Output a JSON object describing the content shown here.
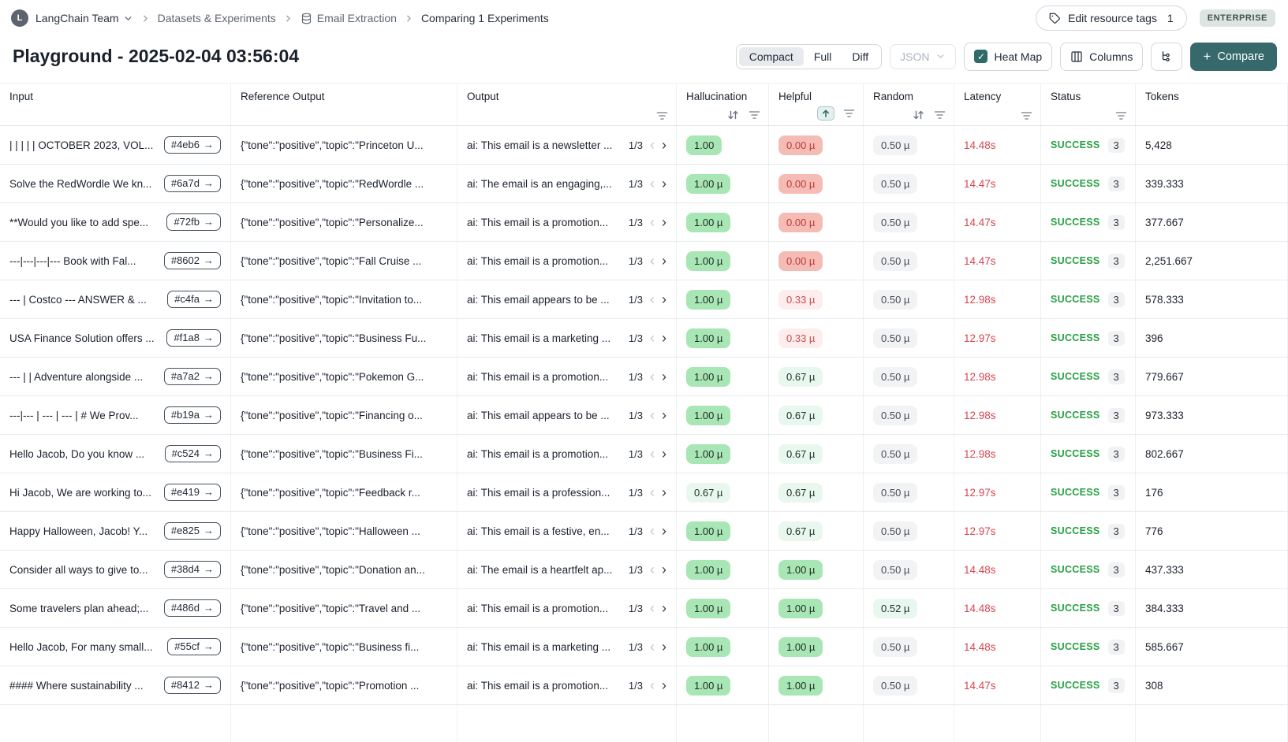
{
  "breadcrumb": {
    "team": "LangChain Team",
    "items": [
      "Datasets & Experiments",
      "Email Extraction",
      "Comparing 1 Experiments"
    ]
  },
  "topbar": {
    "edit_tags_label": "Edit resource tags",
    "edit_tags_count": "1",
    "enterprise_badge": "ENTERPRISE"
  },
  "header": {
    "title": "Playground - 2025-02-04 03:56:04",
    "view_modes": [
      "Compact",
      "Full",
      "Diff"
    ],
    "active_mode": "Compact",
    "json_dropdown": "JSON",
    "heatmap_label": "Heat Map",
    "heatmap_checked": true,
    "columns_label": "Columns",
    "compare_label": "Compare"
  },
  "colors": {
    "accent_teal": "#35696b",
    "badge_green": "#a9e6b5",
    "badge_green_light": "#e9f8ee",
    "badge_red": "#f5bcb6",
    "badge_red_light": "#fdedec",
    "badge_gray": "#f2f3f5",
    "latency_red": "#d64550",
    "success_green": "#27a043"
  },
  "table": {
    "columns": [
      {
        "label": "Input",
        "icons": []
      },
      {
        "label": "Reference Output",
        "icons": []
      },
      {
        "label": "Output",
        "icons": [
          "filter"
        ]
      },
      {
        "label": "Hallucination",
        "icons": [
          "sort",
          "filter"
        ]
      },
      {
        "label": "Helpful",
        "icons": [
          "sort-asc-active",
          "filter"
        ]
      },
      {
        "label": "Random",
        "icons": [
          "sort",
          "filter"
        ]
      },
      {
        "label": "Latency",
        "icons": [
          "filter"
        ]
      },
      {
        "label": "Status",
        "icons": [
          "filter"
        ]
      },
      {
        "label": "Tokens",
        "icons": []
      }
    ],
    "rows": [
      {
        "input": "| | | | | OCTOBER 2023, VOL...",
        "hash": "#4eb6",
        "reference": "{\"tone\":\"positive\",\"topic\":\"Princeton U...",
        "output": "ai: This email is a newsletter ...",
        "pager": "1/3",
        "hallucination": {
          "value": "1.00",
          "tone": "green"
        },
        "helpful": {
          "value": "0.00 µ",
          "tone": "red"
        },
        "random": {
          "value": "0.50 µ",
          "tone": "gray"
        },
        "latency": "14.48s",
        "status": "SUCCESS",
        "attempts": "3",
        "tokens": "5,428"
      },
      {
        "input": "Solve the RedWordle We kn...",
        "hash": "#6a7d",
        "reference": "{\"tone\":\"positive\",\"topic\":\"RedWordle ...",
        "output": "ai: The email is an engaging,...",
        "pager": "1/3",
        "hallucination": {
          "value": "1.00 µ",
          "tone": "green"
        },
        "helpful": {
          "value": "0.00 µ",
          "tone": "red"
        },
        "random": {
          "value": "0.50 µ",
          "tone": "gray"
        },
        "latency": "14.47s",
        "status": "SUCCESS",
        "attempts": "3",
        "tokens": "339.333"
      },
      {
        "input": "**Would you like to add spe...",
        "hash": "#72fb",
        "reference": "{\"tone\":\"positive\",\"topic\":\"Personalize...",
        "output": "ai: This email is a promotion...",
        "pager": "1/3",
        "hallucination": {
          "value": "1.00 µ",
          "tone": "green"
        },
        "helpful": {
          "value": "0.00 µ",
          "tone": "red"
        },
        "random": {
          "value": "0.50 µ",
          "tone": "gray"
        },
        "latency": "14.47s",
        "status": "SUCCESS",
        "attempts": "3",
        "tokens": "377.667"
      },
      {
        "input": "---|---|---|--- Book with Fal...",
        "hash": "#8602",
        "reference": "{\"tone\":\"positive\",\"topic\":\"Fall Cruise ...",
        "output": "ai: This email is a promotion...",
        "pager": "1/3",
        "hallucination": {
          "value": "1.00 µ",
          "tone": "green"
        },
        "helpful": {
          "value": "0.00 µ",
          "tone": "red"
        },
        "random": {
          "value": "0.50 µ",
          "tone": "gray"
        },
        "latency": "14.47s",
        "status": "SUCCESS",
        "attempts": "3",
        "tokens": "2,251.667"
      },
      {
        "input": "--- | Costco --- ANSWER & ...",
        "hash": "#c4fa",
        "reference": "{\"tone\":\"positive\",\"topic\":\"Invitation to...",
        "output": "ai: This email appears to be ...",
        "pager": "1/3",
        "hallucination": {
          "value": "1.00 µ",
          "tone": "green"
        },
        "helpful": {
          "value": "0.33 µ",
          "tone": "red-light"
        },
        "random": {
          "value": "0.50 µ",
          "tone": "gray"
        },
        "latency": "12.98s",
        "status": "SUCCESS",
        "attempts": "3",
        "tokens": "578.333"
      },
      {
        "input": "USA Finance Solution offers ...",
        "hash": "#f1a8",
        "reference": "{\"tone\":\"positive\",\"topic\":\"Business Fu...",
        "output": "ai: This email is a marketing ...",
        "pager": "1/3",
        "hallucination": {
          "value": "1.00 µ",
          "tone": "green"
        },
        "helpful": {
          "value": "0.33 µ",
          "tone": "red-light"
        },
        "random": {
          "value": "0.50 µ",
          "tone": "gray"
        },
        "latency": "12.97s",
        "status": "SUCCESS",
        "attempts": "3",
        "tokens": "396"
      },
      {
        "input": "--- | | Adventure alongside ...",
        "hash": "#a7a2",
        "reference": "{\"tone\":\"positive\",\"topic\":\"Pokemon G...",
        "output": "ai: This email is a promotion...",
        "pager": "1/3",
        "hallucination": {
          "value": "1.00 µ",
          "tone": "green"
        },
        "helpful": {
          "value": "0.67 µ",
          "tone": "green-light"
        },
        "random": {
          "value": "0.50 µ",
          "tone": "gray"
        },
        "latency": "12.98s",
        "status": "SUCCESS",
        "attempts": "3",
        "tokens": "779.667"
      },
      {
        "input": "---|--- | --- | --- | # We Prov...",
        "hash": "#b19a",
        "reference": "{\"tone\":\"positive\",\"topic\":\"Financing o...",
        "output": "ai: This email appears to be ...",
        "pager": "1/3",
        "hallucination": {
          "value": "1.00 µ",
          "tone": "green"
        },
        "helpful": {
          "value": "0.67 µ",
          "tone": "green-light"
        },
        "random": {
          "value": "0.50 µ",
          "tone": "gray"
        },
        "latency": "12.98s",
        "status": "SUCCESS",
        "attempts": "3",
        "tokens": "973.333"
      },
      {
        "input": "Hello Jacob, Do you know ...",
        "hash": "#c524",
        "reference": "{\"tone\":\"positive\",\"topic\":\"Business Fi...",
        "output": "ai: This email is a promotion...",
        "pager": "1/3",
        "hallucination": {
          "value": "1.00 µ",
          "tone": "green"
        },
        "helpful": {
          "value": "0.67 µ",
          "tone": "green-light"
        },
        "random": {
          "value": "0.50 µ",
          "tone": "gray"
        },
        "latency": "12.98s",
        "status": "SUCCESS",
        "attempts": "3",
        "tokens": "802.667"
      },
      {
        "input": "Hi Jacob, We are working to...",
        "hash": "#e419",
        "reference": "{\"tone\":\"positive\",\"topic\":\"Feedback r...",
        "output": "ai: This email is a profession...",
        "pager": "1/3",
        "hallucination": {
          "value": "0.67 µ",
          "tone": "green-light"
        },
        "helpful": {
          "value": "0.67 µ",
          "tone": "green-light"
        },
        "random": {
          "value": "0.50 µ",
          "tone": "gray"
        },
        "latency": "12.97s",
        "status": "SUCCESS",
        "attempts": "3",
        "tokens": "176"
      },
      {
        "input": "Happy Halloween, Jacob! Y...",
        "hash": "#e825",
        "reference": "{\"tone\":\"positive\",\"topic\":\"Halloween ...",
        "output": "ai: This email is a festive, en...",
        "pager": "1/3",
        "hallucination": {
          "value": "1.00 µ",
          "tone": "green"
        },
        "helpful": {
          "value": "0.67 µ",
          "tone": "green-light"
        },
        "random": {
          "value": "0.50 µ",
          "tone": "gray"
        },
        "latency": "12.97s",
        "status": "SUCCESS",
        "attempts": "3",
        "tokens": "776"
      },
      {
        "input": "Consider all ways to give to...",
        "hash": "#38d4",
        "reference": "{\"tone\":\"positive\",\"topic\":\"Donation an...",
        "output": "ai: The email is a heartfelt ap...",
        "pager": "1/3",
        "hallucination": {
          "value": "1.00 µ",
          "tone": "green"
        },
        "helpful": {
          "value": "1.00 µ",
          "tone": "green"
        },
        "random": {
          "value": "0.50 µ",
          "tone": "gray"
        },
        "latency": "14.48s",
        "status": "SUCCESS",
        "attempts": "3",
        "tokens": "437.333"
      },
      {
        "input": "Some travelers plan ahead;...",
        "hash": "#486d",
        "reference": "{\"tone\":\"positive\",\"topic\":\"Travel and ...",
        "output": "ai: This email is a promotion...",
        "pager": "1/3",
        "hallucination": {
          "value": "1.00 µ",
          "tone": "green"
        },
        "helpful": {
          "value": "1.00 µ",
          "tone": "green"
        },
        "random": {
          "value": "0.52 µ",
          "tone": "green-light"
        },
        "latency": "14.48s",
        "status": "SUCCESS",
        "attempts": "3",
        "tokens": "384.333"
      },
      {
        "input": "Hello Jacob, For many small...",
        "hash": "#55cf",
        "reference": "{\"tone\":\"positive\",\"topic\":\"Business fi...",
        "output": "ai: This email is a marketing ...",
        "pager": "1/3",
        "hallucination": {
          "value": "1.00 µ",
          "tone": "green"
        },
        "helpful": {
          "value": "1.00 µ",
          "tone": "green"
        },
        "random": {
          "value": "0.50 µ",
          "tone": "gray"
        },
        "latency": "14.48s",
        "status": "SUCCESS",
        "attempts": "3",
        "tokens": "585.667"
      },
      {
        "input": "#### Where sustainability ...",
        "hash": "#8412",
        "reference": "{\"tone\":\"positive\",\"topic\":\"Promotion ...",
        "output": "ai: This email is a promotion...",
        "pager": "1/3",
        "hallucination": {
          "value": "1.00 µ",
          "tone": "green"
        },
        "helpful": {
          "value": "1.00 µ",
          "tone": "green"
        },
        "random": {
          "value": "0.50 µ",
          "tone": "gray"
        },
        "latency": "14.47s",
        "status": "SUCCESS",
        "attempts": "3",
        "tokens": "308"
      }
    ]
  }
}
